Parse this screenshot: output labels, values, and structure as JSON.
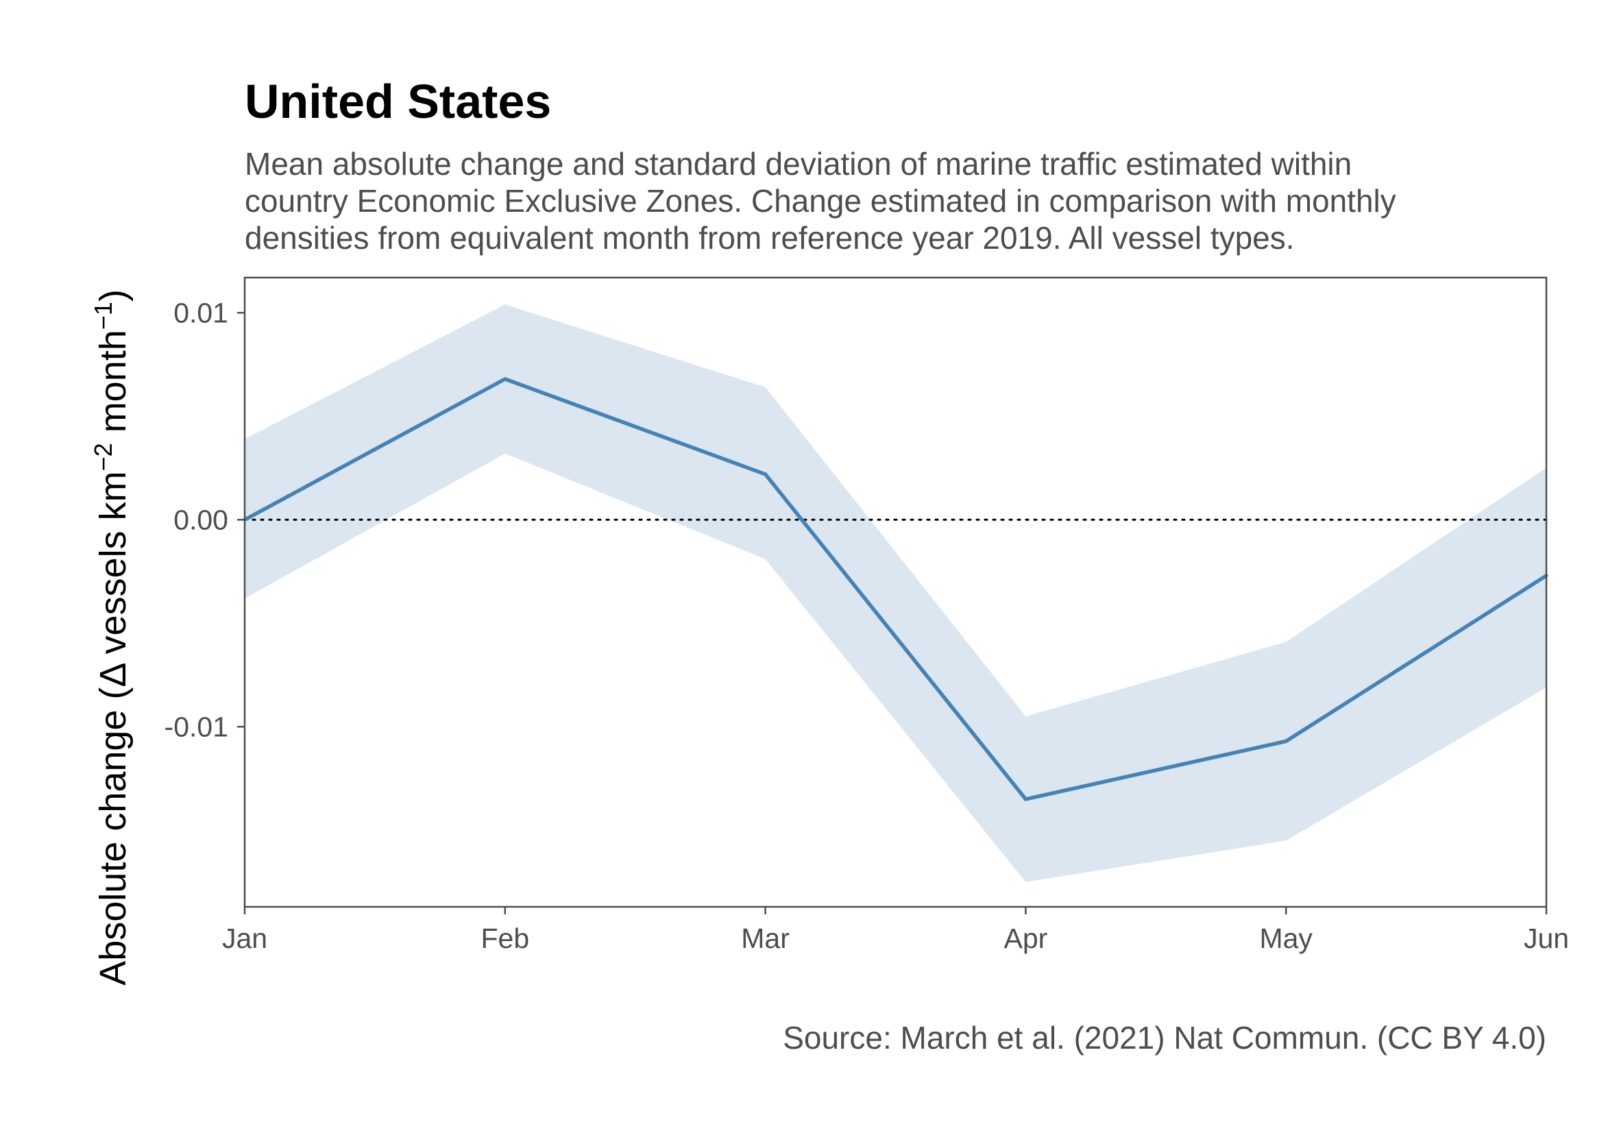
{
  "chart_data": {
    "type": "line",
    "title": "United States",
    "subtitle_lines": [
      "Mean absolute change and standard deviation of marine traffic estimated within",
      "country Economic Exclusive Zones. Change estimated in comparison with monthly",
      "densities from equivalent month from reference year 2019. All vessel types."
    ],
    "ylabel": {
      "prefix": "Absolute change (",
      "delta": "Δ",
      "units": " vessels km",
      "exp1": "−2",
      "month": " month",
      "exp2": "−1",
      "suffix": ")"
    },
    "xlabel": "",
    "categories": [
      "Jan",
      "Feb",
      "Mar",
      "Apr",
      "May",
      "Jun"
    ],
    "series": [
      {
        "values": [
          0.0,
          0.0068,
          0.0022,
          -0.0135,
          -0.0107,
          -0.0027
        ],
        "upper": [
          0.0039,
          0.0104,
          0.0064,
          -0.0095,
          -0.0059,
          0.0025
        ],
        "lower": [
          -0.0038,
          0.0032,
          -0.0019,
          -0.0175,
          -0.0155,
          -0.0081
        ]
      }
    ],
    "ylim": [
      -0.0187,
      0.0117
    ],
    "yticks": [
      0.01,
      0.0,
      -0.01
    ],
    "ytick_labels": [
      "0.01",
      "0.00",
      "-0.01"
    ],
    "reference_line": 0,
    "caption": "Source: March et al. (2021) Nat Commun. (CC BY 4.0)",
    "colors": {
      "line": "#4682b4",
      "band": "#dbe6f0",
      "reference": "#000000",
      "axis": "#4d4d4d"
    }
  }
}
